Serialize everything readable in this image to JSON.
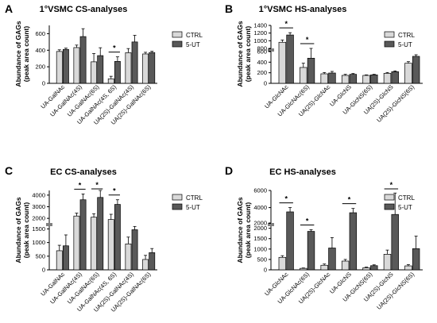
{
  "legend_colors": {
    "CTRL": "#d9d9d9",
    "5-UT": "#595959"
  },
  "chart_data": [
    {
      "panel": "A",
      "type": "bar",
      "title": "1°VSMC CS-analyses",
      "ylabel_line1": "Abundance of GAGs",
      "ylabel_line2": "(peak area count)",
      "ylim": [
        0,
        700
      ],
      "yticks": [
        0,
        200,
        400,
        600
      ],
      "categories": [
        "UA-GalNAc",
        "UA-GalNAc(4S)",
        "UA-GalNAc(6S)",
        "UA-GalNAc(4S, 6S)",
        "UA(2S)-GalNAc(4S)",
        "UA(2S)-GalNAc(6S)"
      ],
      "series": [
        {
          "name": "CTRL",
          "values": [
            385,
            432,
            260,
            55,
            370,
            355
          ],
          "errors": [
            20,
            30,
            100,
            30,
            50,
            20
          ]
        },
        {
          "name": "5-UT",
          "values": [
            410,
            565,
            335,
            265,
            500,
            372
          ],
          "errors": [
            15,
            95,
            95,
            55,
            80,
            15
          ]
        }
      ],
      "significance": [
        {
          "category_index": 3,
          "label": "*"
        }
      ]
    },
    {
      "panel": "B",
      "type": "bar",
      "title": "1°VSMC HS-analyses",
      "ylabel_line1": "Abundance of GAGs",
      "ylabel_line2": "(peak area count)",
      "y_axis_segments": [
        {
          "range": [
            0,
            600
          ],
          "ticks": [
            0,
            200,
            400,
            600
          ]
        },
        {
          "range": [
            800,
            1400
          ],
          "ticks": [
            800,
            1000,
            1200,
            1400
          ]
        }
      ],
      "categories": [
        "UA-GlcNAc",
        "UA-GlcNAc(6S)",
        "UA(2S)-GlcNAc",
        "UA-GlcNS",
        "UA-GlcNS(6S)",
        "UA(2S)-GlcNS",
        "UA(2S)-GlcNS(6S)"
      ],
      "series": [
        {
          "name": "CTRL",
          "values": [
            960,
            300,
            180,
            150,
            150,
            190,
            380
          ],
          "errors": [
            60,
            80,
            25,
            20,
            10,
            15,
            30
          ]
        },
        {
          "name": "5-UT",
          "values": [
            1150,
            475,
            195,
            170,
            160,
            220,
            510
          ],
          "errors": [
            60,
            150,
            30,
            15,
            10,
            15,
            30
          ]
        }
      ],
      "significance": [
        {
          "category_index": 0,
          "label": "*"
        },
        {
          "category_index": 1,
          "label": "*"
        }
      ]
    },
    {
      "panel": "C",
      "type": "bar",
      "title": "EC CS-analyses",
      "ylabel_line1": "Abundance of GAGs",
      "ylabel_line2": "(peak area count)",
      "y_axis_segments": [
        {
          "range": [
            0,
            1600
          ],
          "ticks": [
            0,
            500,
            1000,
            1500
          ]
        },
        {
          "range": [
            1600,
            4400
          ],
          "ticks": [
            2000,
            3000,
            4000
          ]
        }
      ],
      "categories": [
        "UA-GalNAc",
        "UA-GalNAc(4S)",
        "UA-GalNAc(6S)",
        "UA-GalNAc(4S, 6S)",
        "UA(2S)-GalNAc(4S)",
        "UA(2S)-GalNAc(6S)"
      ],
      "series": [
        {
          "name": "CTRL",
          "values": [
            700,
            2200,
            2100,
            1900,
            950,
            380
          ],
          "errors": [
            200,
            250,
            300,
            450,
            250,
            150
          ]
        },
        {
          "name": "5-UT",
          "values": [
            880,
            3600,
            3800,
            3200,
            1470,
            630
          ],
          "errors": [
            400,
            500,
            600,
            400,
            120,
            150
          ]
        }
      ],
      "significance": [
        {
          "category_index": 1,
          "label": "*"
        },
        {
          "category_index": 2,
          "label": "*"
        },
        {
          "category_index": 3,
          "label": "*"
        }
      ]
    },
    {
      "panel": "D",
      "type": "bar",
      "title": "EC HS-analyses",
      "ylabel_line1": "Abundance of GAGs",
      "ylabel_line2": "(peak area count)",
      "y_axis_segments": [
        {
          "range": [
            0,
            2100
          ],
          "ticks": [
            0,
            500,
            1000,
            1500,
            2000
          ]
        },
        {
          "range": [
            2200,
            6000
          ],
          "ticks": [
            2000,
            4000,
            6000
          ]
        }
      ],
      "categories": [
        "UA-GlcNAc",
        "UA-GlcNAc(6S)",
        "UA(2S)-GlcNAc",
        "UA-GlcNS",
        "UA-GlcNS(6S)",
        "UA(2S)-GlcNS",
        "UA(2S)-GlcNS(6S)"
      ],
      "series": [
        {
          "name": "CTRL",
          "values": [
            600,
            70,
            220,
            420,
            100,
            750,
            190
          ],
          "errors": [
            80,
            20,
            60,
            80,
            30,
            200,
            60
          ]
        },
        {
          "name": "5-UT",
          "values": [
            3500,
            1850,
            1050,
            3400,
            200,
            3200,
            1020
          ],
          "errors": [
            500,
            80,
            500,
            500,
            40,
            2500,
            600
          ]
        }
      ],
      "significance": [
        {
          "category_index": 0,
          "label": "*"
        },
        {
          "category_index": 1,
          "label": "*"
        },
        {
          "category_index": 3,
          "label": "*"
        },
        {
          "category_index": 5,
          "label": "*"
        }
      ]
    }
  ]
}
